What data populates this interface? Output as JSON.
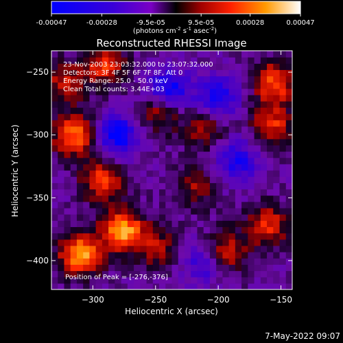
{
  "chart_data": {
    "type": "heatmap",
    "title": "Reconstructed RHESSI Image",
    "xlabel": "Heliocentric X (arcsec)",
    "ylabel": "Heliocentric Y (arcsec)",
    "xlim": [
      -333,
      -141
    ],
    "ylim": [
      -423,
      -233
    ],
    "xticks": [
      -300,
      -250,
      -200,
      -150
    ],
    "yticks": [
      -400,
      -350,
      -300,
      -250
    ],
    "colorbar": {
      "range": [
        -0.00047,
        0.00047
      ],
      "ticks": [
        -0.00047,
        -0.00028,
        -9.5e-05,
        9.5e-05,
        0.00028,
        0.00047
      ],
      "tick_labels": [
        "-0.00047",
        "-0.00028",
        "-9.5e-05",
        "9.5e-05",
        "0.00028",
        "0.00047"
      ],
      "unit_label": "(photons cm",
      "unit_exp1": "-2",
      "unit_mid": " s",
      "unit_exp2": "-1",
      "unit_end": " asec",
      "unit_exp3": "-2",
      "unit_close": ")"
    },
    "annotations": [
      "23-Nov-2003 23:03:32.000 to 23:07:32.000",
      "Detectors: 3F 4F 5F 6F 7F 8F, Att 0",
      "Energy Range: 25.0 - 50.0 keV",
      "Clean     Total counts: 3.44E+03"
    ],
    "peak_label": "Position of Peak = [-276,-376]",
    "peak": [
      -276,
      -376
    ],
    "bright_sources": [
      {
        "x": -315,
        "y": -300,
        "value": 0.0004
      },
      {
        "x": -310,
        "y": -395,
        "value": 0.00047
      },
      {
        "x": -276,
        "y": -376,
        "value": 0.00047
      },
      {
        "x": -292,
        "y": -336,
        "value": 0.00035
      },
      {
        "x": -246,
        "y": -280,
        "value": 0.0003
      },
      {
        "x": -210,
        "y": -295,
        "value": 0.00022
      },
      {
        "x": -155,
        "y": -258,
        "value": 0.00035
      },
      {
        "x": -157,
        "y": -292,
        "value": 0.0003
      },
      {
        "x": -218,
        "y": -342,
        "value": 0.0002
      },
      {
        "x": -248,
        "y": -390,
        "value": 0.00022
      },
      {
        "x": -193,
        "y": -392,
        "value": 0.00028
      },
      {
        "x": -160,
        "y": -372,
        "value": 0.0003
      },
      {
        "x": -322,
        "y": -258,
        "value": 0.00025
      },
      {
        "x": -290,
        "y": -245,
        "value": 0.0003
      }
    ],
    "dim_regions": [
      {
        "x": -240,
        "y": -265,
        "value": -0.0004
      },
      {
        "x": -280,
        "y": -300,
        "value": -0.00035
      },
      {
        "x": -200,
        "y": -270,
        "value": -0.0003
      },
      {
        "x": -185,
        "y": -320,
        "value": -0.00028
      },
      {
        "x": -212,
        "y": -402,
        "value": -0.00022
      }
    ]
  },
  "footer": {
    "timestamp": "7-May-2022 09:07"
  }
}
